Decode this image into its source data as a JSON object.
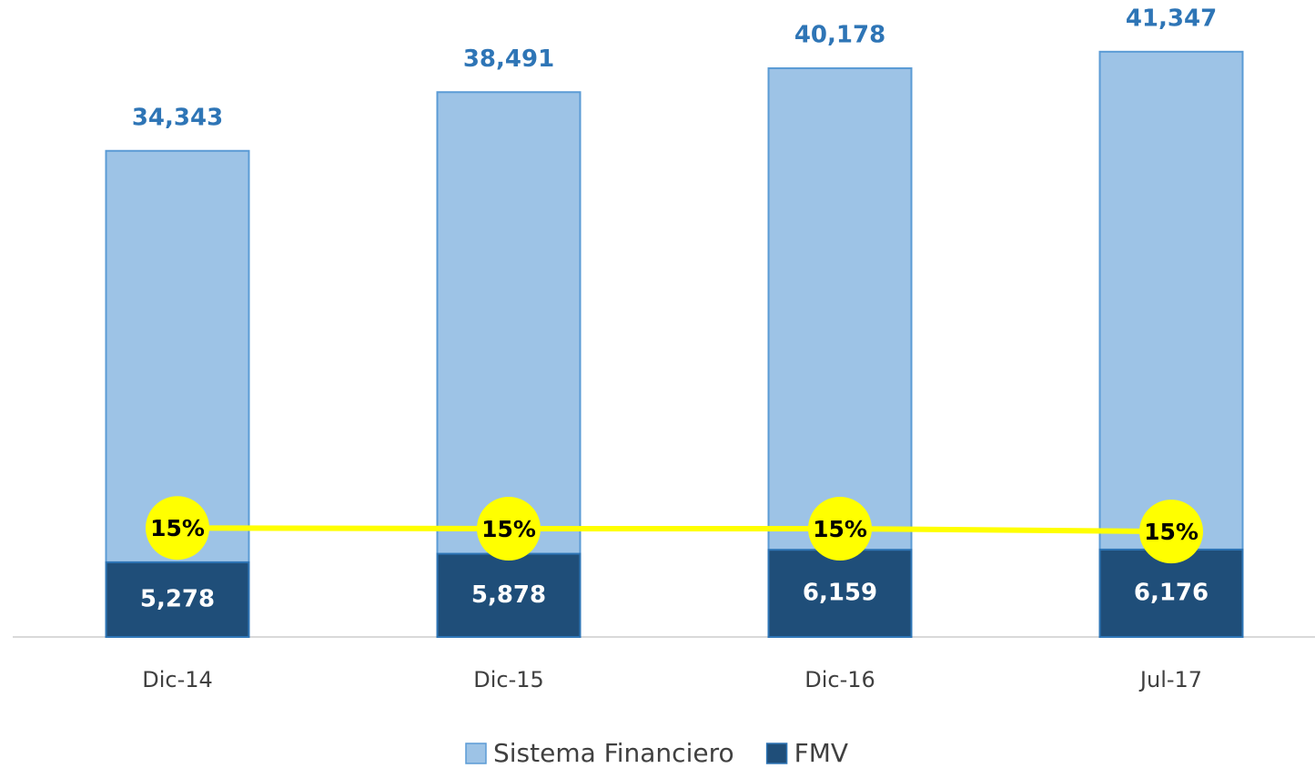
{
  "chart_data": {
    "type": "bar",
    "categories": [
      "Dic-14",
      "Dic-15",
      "Dic-16",
      "Jul-17"
    ],
    "series": [
      {
        "name": "Sistema Financiero",
        "color": "#9dc3e6",
        "values": [
          34343,
          38491,
          40178,
          41347
        ],
        "value_labels": [
          "34,343",
          "38,491",
          "40,178",
          "41,347"
        ]
      },
      {
        "name": "FMV",
        "color": "#1f4e79",
        "values": [
          5278,
          5878,
          6159,
          6176
        ],
        "value_labels": [
          "5,278",
          "5,878",
          "6,159",
          "6,176"
        ]
      },
      {
        "type": "line",
        "color": "#ffff00",
        "axis": "y2",
        "values": [
          15.4,
          15.3,
          15.3,
          14.9
        ],
        "value_labels": [
          "15%",
          "15%",
          "15%",
          "15%"
        ]
      }
    ],
    "ylim": [
      0,
      45000
    ],
    "y2lim": [
      0,
      90
    ],
    "legend": "bottom"
  }
}
